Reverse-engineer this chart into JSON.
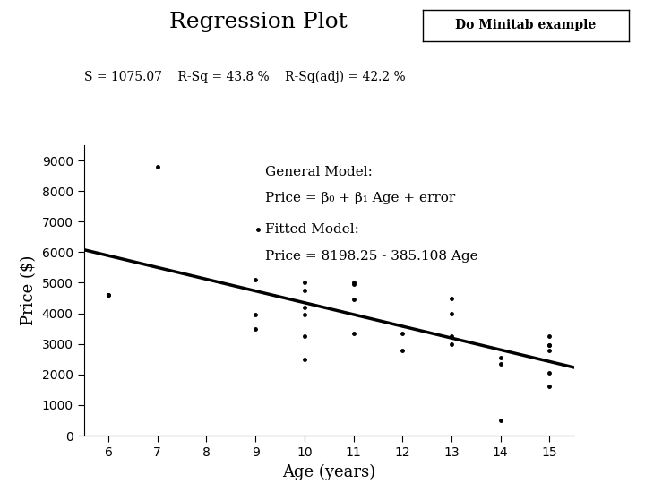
{
  "title": "Regression Plot",
  "subtitle": "S = 1075.07    R-Sq = 43.8 %    R-Sq(adj) = 42.2 %",
  "xlabel": "Age (years)",
  "ylabel": "Price ($)",
  "button_text": "Do Minitab example",
  "general_model_line1": "General Model:",
  "general_model_line2": "Price = β₀ + β₁ Age + error",
  "fitted_model_line1": "Fitted Model:",
  "fitted_model_line2": "Price = 8198.25 - 385.108 Age",
  "intercept": 8198.25,
  "slope": -385.108,
  "x_data": [
    6,
    6,
    7,
    9,
    9,
    9,
    10,
    10,
    10,
    10,
    10,
    10,
    11,
    11,
    11,
    11,
    12,
    12,
    13,
    13,
    13,
    13,
    14,
    14,
    14,
    15,
    15,
    15,
    15,
    15,
    15
  ],
  "y_data": [
    4600,
    4600,
    8800,
    5100,
    3950,
    3500,
    4200,
    3950,
    3250,
    2500,
    4750,
    5000,
    4450,
    3350,
    5000,
    4950,
    2800,
    3350,
    4500,
    3000,
    3250,
    4000,
    2550,
    2350,
    500,
    2950,
    2950,
    2050,
    1600,
    2800,
    3250
  ],
  "xlim": [
    5.5,
    15.5
  ],
  "ylim": [
    0,
    9500
  ],
  "xticks": [
    6,
    7,
    8,
    9,
    10,
    11,
    12,
    13,
    14,
    15
  ],
  "yticks": [
    0,
    1000,
    2000,
    3000,
    4000,
    5000,
    6000,
    7000,
    8000,
    9000
  ],
  "scatter_color": "black",
  "line_color": "black",
  "line_width": 2.5,
  "marker_size": 6,
  "bg_color": "white",
  "plot_bg_color": "white"
}
